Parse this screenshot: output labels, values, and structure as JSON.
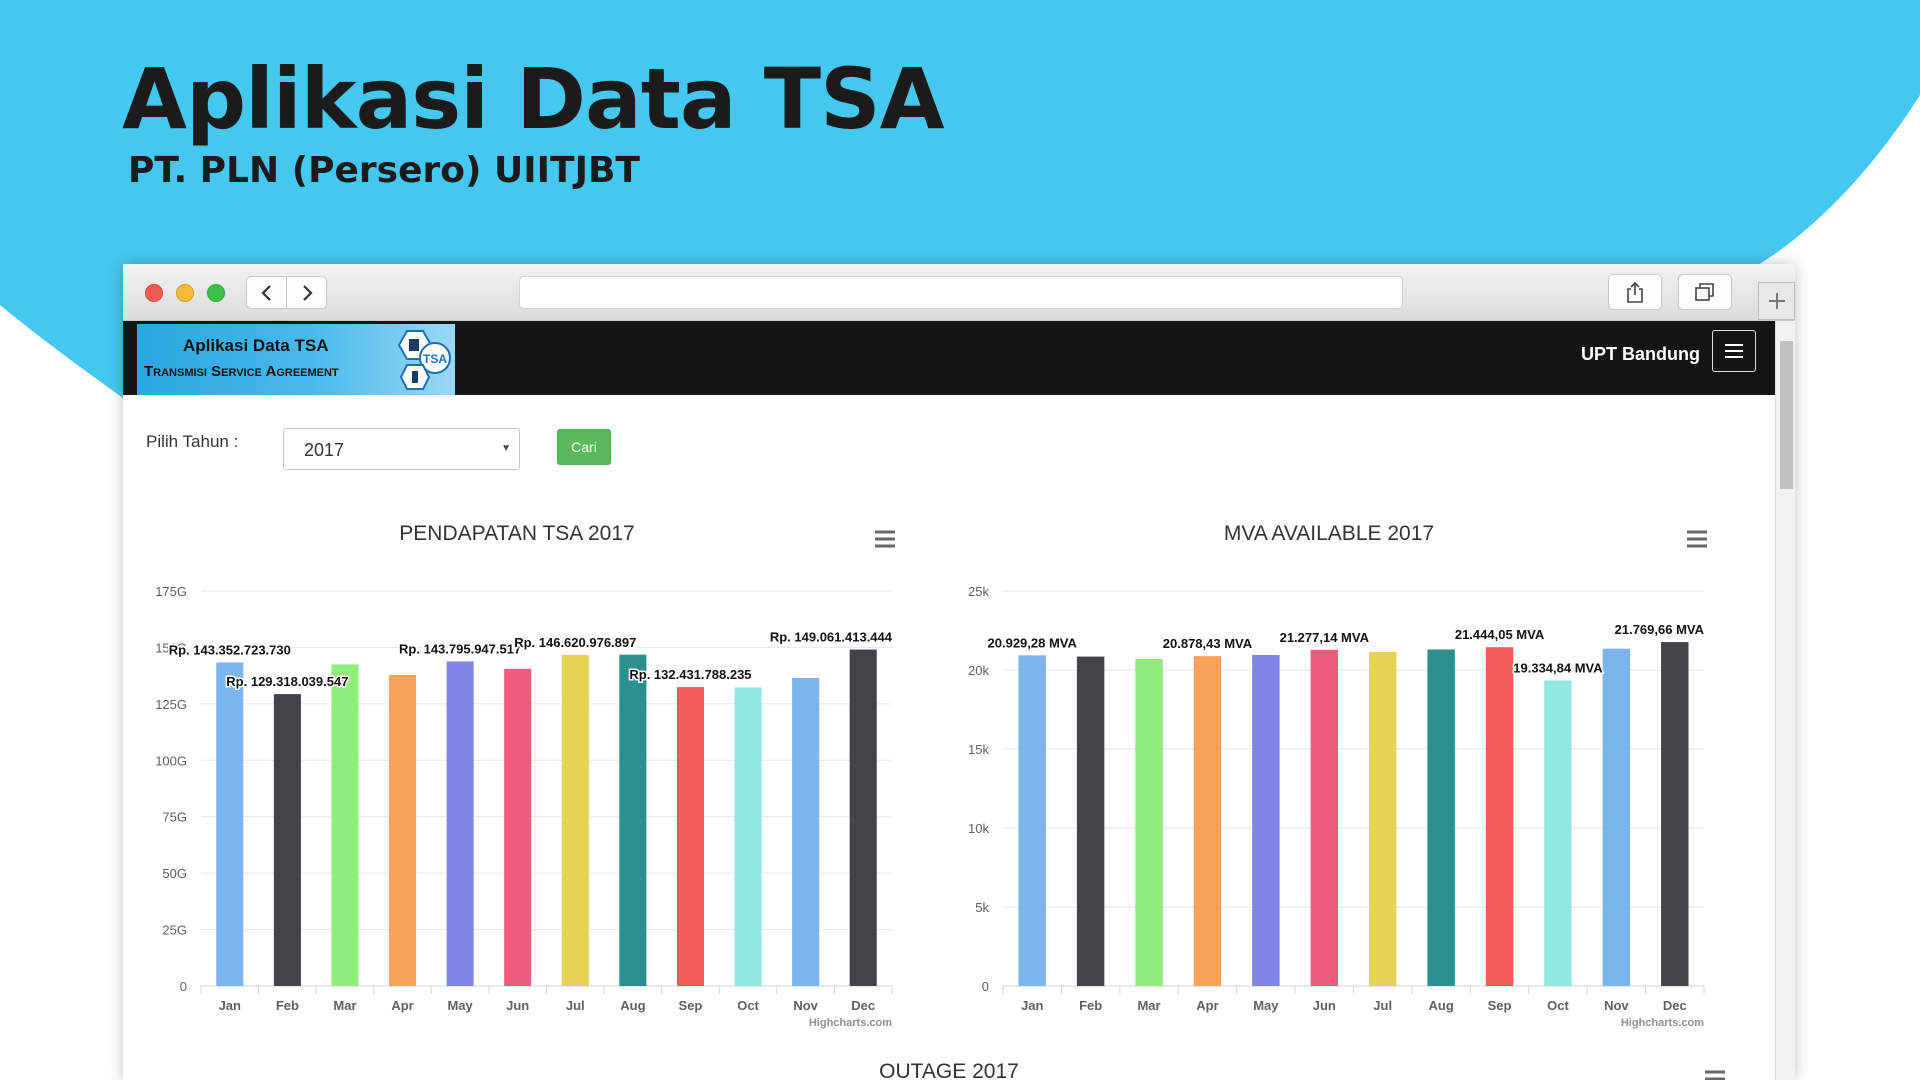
{
  "slide": {
    "title": "Aplikasi Data TSA",
    "subtitle": "PT. PLN (Persero) UIITJBT",
    "accent_color": "#45c8ef"
  },
  "browser": {
    "icons": [
      "chevron-left-icon",
      "chevron-right-icon",
      "share-icon",
      "tabs-icon",
      "plus-icon"
    ]
  },
  "app": {
    "logo_title": "Aplikasi Data TSA",
    "logo_subtitle": "Transmisi Service Agreement",
    "logo_badge": "TSA",
    "user_label": "UPT Bandung",
    "nav_bg": "#151515"
  },
  "filter": {
    "label": "Pilih Tahun :",
    "selected_year": "2017",
    "search_button": "Cari"
  },
  "colors": [
    "#7cb5ec",
    "#434348",
    "#90ed7d",
    "#f7a35c",
    "#8085e9",
    "#f15c80",
    "#e4d354",
    "#2b908f",
    "#f45b5b",
    "#91e8e1",
    "#7cb5ec",
    "#434348"
  ],
  "chart_data": [
    {
      "type": "bar",
      "title": "PENDAPATAN TSA 2017",
      "categories": [
        "Jan",
        "Feb",
        "Mar",
        "Apr",
        "May",
        "Jun",
        "Jul",
        "Aug",
        "Sep",
        "Oct",
        "Nov",
        "Dec"
      ],
      "values": [
        143352723730,
        129318039547,
        142500000000,
        137800000000,
        143795947517,
        140500000000,
        146620976897,
        146800000000,
        132431788235,
        132300000000,
        136500000000,
        149061413444
      ],
      "ylim": [
        0,
        175000000000
      ],
      "ytick_values": [
        0,
        25000000000,
        50000000000,
        75000000000,
        100000000000,
        125000000000,
        150000000000,
        175000000000
      ],
      "ytick_labels": [
        "0",
        "25G",
        "50G",
        "75G",
        "100G",
        "125G",
        "150G",
        "175G"
      ],
      "data_labels": [
        {
          "index": 0,
          "text": "Rp. 143.352.723.730"
        },
        {
          "index": 1,
          "text": "Rp. 129.318.039.547"
        },
        {
          "index": 4,
          "text": "Rp. 143.795.947.517"
        },
        {
          "index": 6,
          "text": "Rp. 146.620.976.897"
        },
        {
          "index": 8,
          "text": "Rp. 132.431.788.235"
        },
        {
          "index": 11,
          "text": "Rp. 149.061.413.444"
        }
      ],
      "credits": "Highcharts.com",
      "grid": true,
      "legend": "none"
    },
    {
      "type": "bar",
      "title": "MVA AVAILABLE 2017",
      "categories": [
        "Jan",
        "Feb",
        "Mar",
        "Apr",
        "May",
        "Jun",
        "Jul",
        "Aug",
        "Sep",
        "Oct",
        "Nov",
        "Dec"
      ],
      "values": [
        20929.28,
        20850,
        20700,
        20878.43,
        20950,
        21277.14,
        21150,
        21300,
        21444.05,
        19334.84,
        21350,
        21769.66
      ],
      "ylim": [
        0,
        25000
      ],
      "ytick_values": [
        0,
        5000,
        10000,
        15000,
        20000,
        25000
      ],
      "ytick_labels": [
        "0",
        "5k",
        "10k",
        "15k",
        "20k",
        "25k"
      ],
      "data_labels": [
        {
          "index": 0,
          "text": "20.929,28 MVA"
        },
        {
          "index": 3,
          "text": "20.878,43 MVA"
        },
        {
          "index": 5,
          "text": "21.277,14 MVA"
        },
        {
          "index": 8,
          "text": "21.444,05 MVA"
        },
        {
          "index": 9,
          "text": "19.334,84 MVA"
        },
        {
          "index": 11,
          "text": "21.769,66 MVA"
        }
      ],
      "credits": "Highcharts.com",
      "grid": true,
      "legend": "none"
    }
  ],
  "outage": {
    "title": "OUTAGE 2017"
  }
}
